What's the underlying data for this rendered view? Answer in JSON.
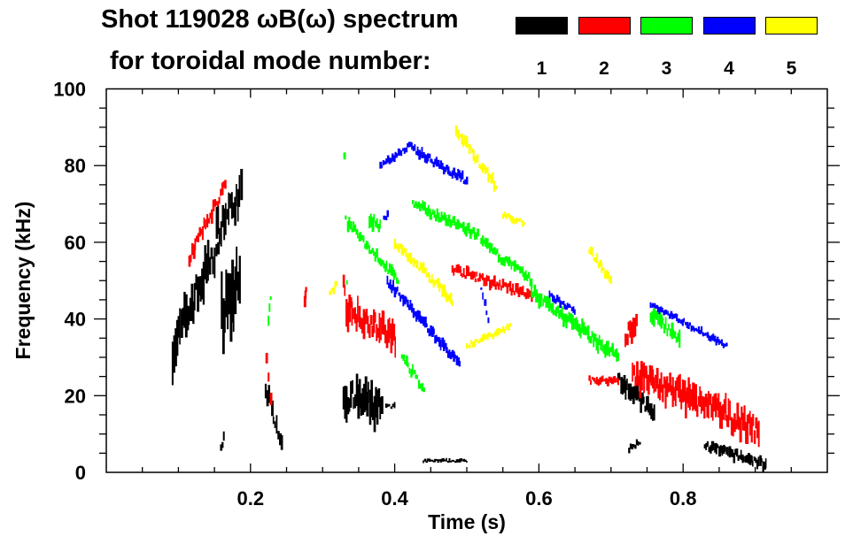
{
  "chart_data": {
    "type": "scatter",
    "subtype": "spectrogram",
    "title_line1": "Shot 119028 ωB(ω) spectrum",
    "title_line2": "for toroidal mode number:",
    "xlabel": "Time (s)",
    "ylabel": "Frequency (kHz)",
    "xlim": [
      0,
      1.0
    ],
    "ylim": [
      0,
      100
    ],
    "x_ticks": [
      {
        "value": 0.2,
        "label": "0.2"
      },
      {
        "value": 0.4,
        "label": "0.4"
      },
      {
        "value": 0.6,
        "label": "0.6"
      },
      {
        "value": 0.8,
        "label": "0.8"
      }
    ],
    "y_ticks": [
      {
        "value": 0,
        "label": "0"
      },
      {
        "value": 20,
        "label": "20"
      },
      {
        "value": 40,
        "label": "40"
      },
      {
        "value": 60,
        "label": "60"
      },
      {
        "value": 80,
        "label": "80"
      },
      {
        "value": 100,
        "label": "100"
      }
    ],
    "x_minor_step": 0.05,
    "y_minor_step": 5,
    "grid": false,
    "legend_placement": "top-right",
    "series": [
      {
        "name": "1",
        "color": "#000000",
        "segments": [
          [
            0.092,
            32,
            0.141,
            54,
            12
          ],
          [
            0.141,
            54,
            0.155,
            58,
            8
          ],
          [
            0.153,
            63,
            0.187,
            73,
            9
          ],
          [
            0.16,
            40,
            0.185,
            50,
            18
          ],
          [
            0.159,
            6,
            0.163,
            10,
            3
          ],
          [
            0.221,
            22,
            0.243,
            8,
            5
          ],
          [
            0.329,
            20,
            0.382,
            17,
            10
          ],
          [
            0.388,
            17,
            0.4,
            17,
            2
          ],
          [
            0.44,
            3,
            0.5,
            3,
            1
          ],
          [
            0.71,
            25,
            0.76,
            15,
            5
          ],
          [
            0.725,
            6,
            0.74,
            8,
            2
          ],
          [
            0.83,
            7,
            0.915,
            2,
            3
          ]
        ]
      },
      {
        "name": "2",
        "color": "#ff0000",
        "segments": [
          [
            0.115,
            56,
            0.165,
            75,
            4
          ],
          [
            0.222,
            30,
            0.228,
            18,
            4
          ],
          [
            0.275,
            45,
            0.277,
            47,
            3
          ],
          [
            0.329,
            50,
            0.333,
            44,
            4
          ],
          [
            0.333,
            43,
            0.401,
            35,
            8
          ],
          [
            0.48,
            53,
            0.59,
            46,
            3
          ],
          [
            0.67,
            24,
            0.71,
            24,
            2
          ],
          [
            0.73,
            26,
            0.905,
            11,
            8
          ],
          [
            0.72,
            35,
            0.735,
            40,
            6
          ]
        ]
      },
      {
        "name": "3",
        "color": "#00ff00",
        "segments": [
          [
            0.33,
            82,
            0.334,
            50,
            2
          ],
          [
            0.335,
            65,
            0.405,
            50,
            3
          ],
          [
            0.365,
            66,
            0.38,
            64,
            4
          ],
          [
            0.425,
            70,
            0.515,
            62,
            3
          ],
          [
            0.52,
            60,
            0.59,
            50,
            3
          ],
          [
            0.59,
            47,
            0.71,
            30,
            4
          ],
          [
            0.755,
            41,
            0.795,
            35,
            5
          ],
          [
            0.41,
            30,
            0.44,
            22,
            3
          ],
          [
            0.225,
            40,
            0.228,
            45,
            3
          ]
        ]
      },
      {
        "name": "4",
        "color": "#0000ff",
        "segments": [
          [
            0.38,
            80,
            0.42,
            85,
            2
          ],
          [
            0.42,
            85,
            0.5,
            76,
            3
          ],
          [
            0.39,
            50,
            0.49,
            28,
            3
          ],
          [
            0.615,
            46,
            0.65,
            42,
            2
          ],
          [
            0.755,
            44,
            0.86,
            33,
            2
          ],
          [
            0.385,
            66,
            0.39,
            67,
            2
          ],
          [
            0.52,
            48,
            0.53,
            40,
            2
          ]
        ]
      },
      {
        "name": "5",
        "color": "#ffff00",
        "segments": [
          [
            0.485,
            89,
            0.54,
            75,
            3
          ],
          [
            0.67,
            58,
            0.7,
            50,
            3
          ],
          [
            0.55,
            67,
            0.58,
            65,
            2
          ],
          [
            0.4,
            60,
            0.48,
            45,
            3
          ],
          [
            0.31,
            47,
            0.32,
            49,
            2
          ],
          [
            0.5,
            33,
            0.56,
            38,
            2
          ]
        ]
      }
    ]
  }
}
